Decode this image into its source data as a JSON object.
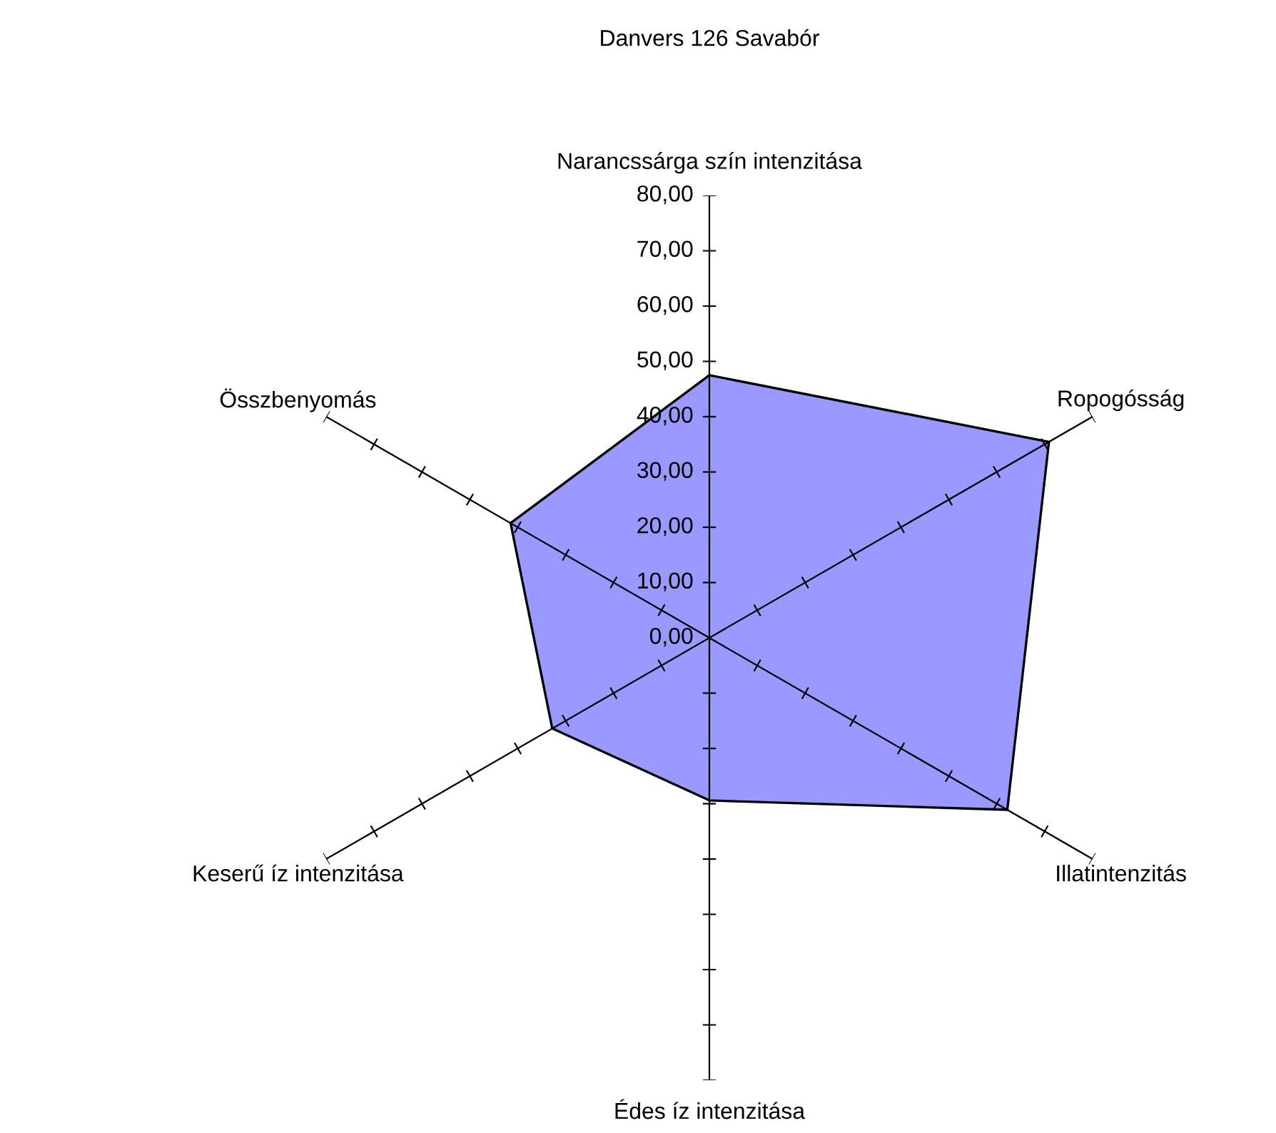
{
  "chart_data": {
    "type": "radar",
    "title": "Danvers 126 Savabór",
    "categories": [
      "Narancssárga szín intenzitása",
      "Ropogósság",
      "Illatintenzitás",
      "Édes íz intenzitása",
      "Keserű íz intenzitása",
      "Összbenyomás"
    ],
    "series": [
      {
        "color": "#9999ff",
        "values": [
          47.5,
          70.9,
          62.2,
          29.4,
          32.8,
          41.5
        ]
      }
    ],
    "ylim": [
      0,
      80
    ],
    "yticks": [
      {
        "value": 0,
        "label": "0,00"
      },
      {
        "value": 10,
        "label": "10,00"
      },
      {
        "value": 20,
        "label": "20,00"
      },
      {
        "value": 30,
        "label": "30,00"
      },
      {
        "value": 40,
        "label": "40,00"
      },
      {
        "value": 50,
        "label": "50,00"
      },
      {
        "value": 60,
        "label": "60,00"
      },
      {
        "value": 70,
        "label": "70,00"
      },
      {
        "value": 80,
        "label": "80,00"
      }
    ],
    "grid": false
  }
}
